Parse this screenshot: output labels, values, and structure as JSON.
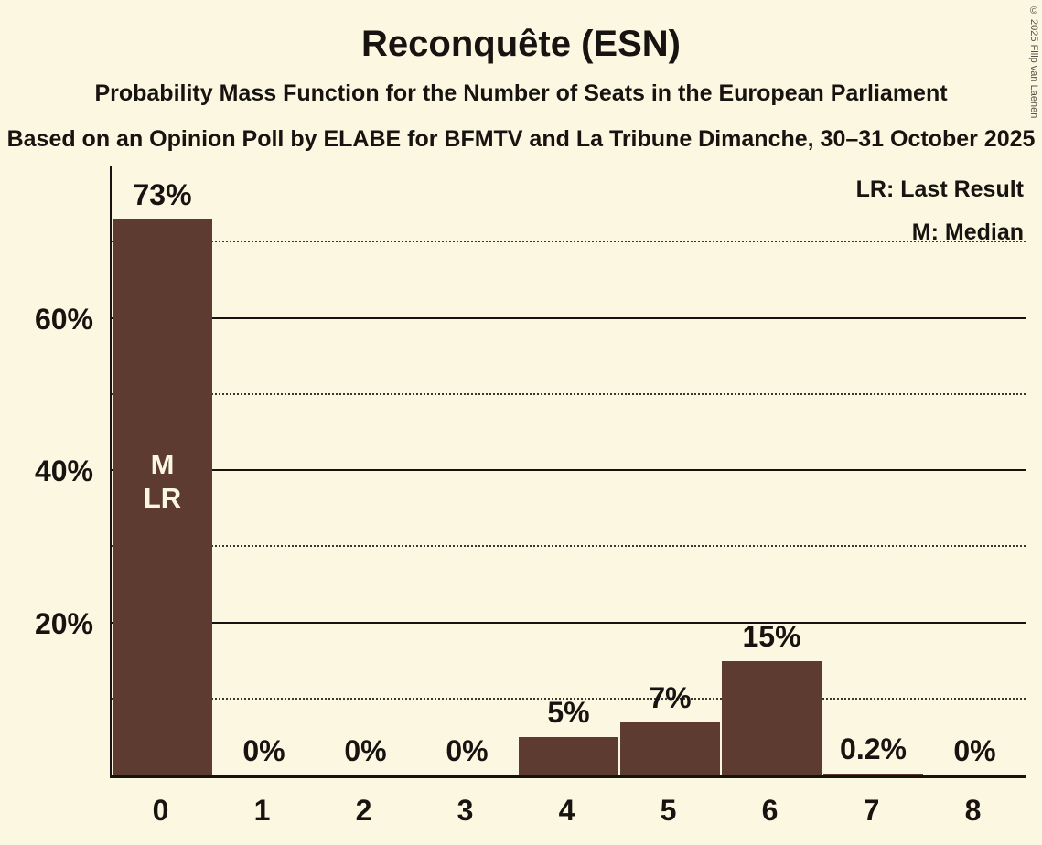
{
  "chart_data": {
    "type": "bar",
    "title": "Reconquête (ESN)",
    "subtitle": "Probability Mass Function for the Number of Seats in the European Parliament",
    "source_line": "Based on an Opinion Poll by ELABE for BFMTV and La Tribune Dimanche, 30–31 October 2025",
    "xlabel": "",
    "ylabel": "",
    "categories": [
      "0",
      "1",
      "2",
      "3",
      "4",
      "5",
      "6",
      "7",
      "8"
    ],
    "values": [
      73,
      0,
      0,
      0,
      5,
      7,
      15,
      0.2,
      0
    ],
    "value_labels": [
      "73%",
      "0%",
      "0%",
      "0%",
      "5%",
      "7%",
      "15%",
      "0.2%",
      "0%"
    ],
    "ylim": [
      0,
      80
    ],
    "yticks_solid": [
      20,
      40,
      60
    ],
    "ytick_labels": [
      "20%",
      "40%",
      "60%"
    ],
    "yticks_dotted": [
      10,
      30,
      50,
      70
    ],
    "legend": [
      "LR: Last Result",
      "M: Median"
    ],
    "bar_annotation": {
      "index": 0,
      "lines": [
        "M",
        "LR"
      ]
    },
    "copyright": "© 2025 Filip van Laenen",
    "colors": {
      "background": "#FBF7E0",
      "bar": "#5D3B30",
      "text": "#161310",
      "annotation_text": "#FBF7E0"
    },
    "grid": true,
    "legend_position": "top-right"
  }
}
